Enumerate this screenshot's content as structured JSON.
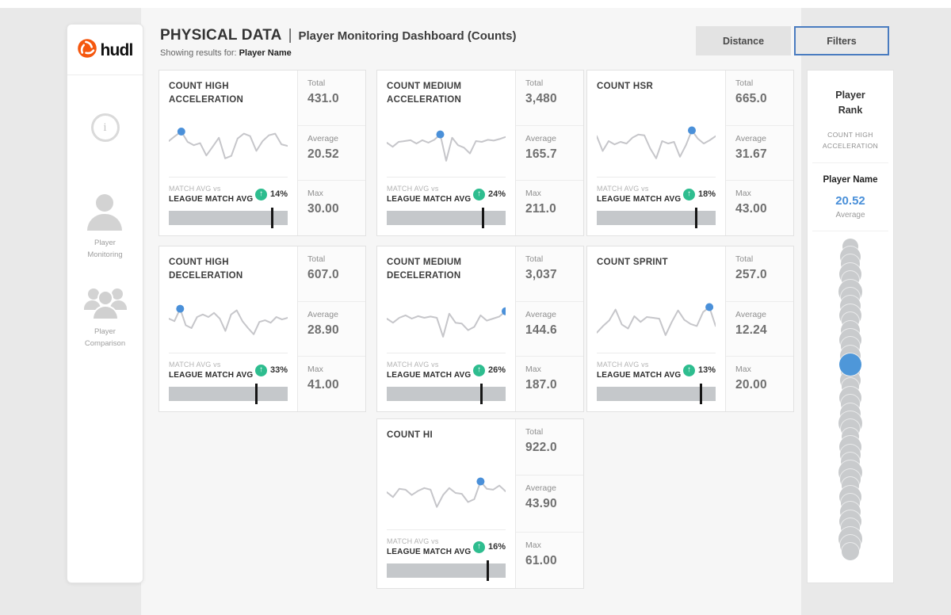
{
  "header": {
    "title": "PHYSICAL DATA",
    "separator": "|",
    "subtitle": "Player Monitoring Dashboard (Counts)",
    "results_label": "Showing results for:",
    "results_value": "Player Name",
    "distance_button": "Distance",
    "filters_button": "Filters"
  },
  "sidebar": {
    "logo": "hudl",
    "info_icon_glyph": "i",
    "items": [
      {
        "label_line1": "Player",
        "label_line2": "Monitoring"
      },
      {
        "label_line1": "Player",
        "label_line2": "Comparison"
      }
    ]
  },
  "card_labels": {
    "total": "Total",
    "average": "Average",
    "max": "Max",
    "match_avg": "MATCH AVG vs",
    "league_avg": "LEAGUE MATCH AVG",
    "up_arrow": "↑"
  },
  "cards": [
    {
      "title": "COUNT HIGH ACCELERATION",
      "total": "431.0",
      "average": "20.52",
      "max": "30.00",
      "pct": "14%",
      "tick_pct": 87,
      "dot_index": 2,
      "spark": [
        52,
        64,
        75,
        50,
        42,
        47,
        17,
        38,
        60,
        10,
        16,
        58,
        70,
        64,
        28,
        52,
        66,
        70,
        44,
        40
      ]
    },
    {
      "title": "COUNT MEDIUM ACCELERATION",
      "total": "3,480",
      "average": "165.7",
      "max": "211.0",
      "pct": "24%",
      "tick_pct": 81,
      "dot_index": 9,
      "spark": [
        48,
        38,
        50,
        52,
        54,
        46,
        54,
        48,
        55,
        68,
        4,
        60,
        42,
        36,
        22,
        52,
        50,
        55,
        53,
        57,
        62
      ]
    },
    {
      "title": "COUNT HSR",
      "total": "665.0",
      "average": "31.67",
      "max": "43.00",
      "pct": "18%",
      "tick_pct": 84,
      "dot_index": 16,
      "spark": [
        62,
        26,
        50,
        42,
        48,
        44,
        58,
        66,
        64,
        32,
        8,
        50,
        44,
        48,
        12,
        40,
        76,
        56,
        44,
        52,
        62
      ]
    },
    {
      "title": "COUNT HIGH DECELERATION",
      "total": "607.0",
      "average": "28.90",
      "max": "41.00",
      "pct": "33%",
      "tick_pct": 74,
      "dot_index": 2,
      "spark": [
        48,
        42,
        72,
        32,
        25,
        52,
        58,
        52,
        62,
        48,
        18,
        58,
        68,
        42,
        25,
        10,
        40,
        44,
        38,
        52,
        46,
        50
      ]
    },
    {
      "title": "COUNT MEDIUM DECELERATION",
      "total": "3,037",
      "average": "144.6",
      "max": "187.0",
      "pct": "26%",
      "tick_pct": 80,
      "dot_index": 19,
      "spark": [
        48,
        38,
        50,
        56,
        48,
        54,
        50,
        53,
        50,
        4,
        60,
        38,
        36,
        20,
        28,
        56,
        43,
        48,
        53,
        66
      ]
    },
    {
      "title": "COUNT SPRINT",
      "total": "257.0",
      "average": "12.24",
      "max": "20.00",
      "pct": "13%",
      "tick_pct": 88,
      "dot_index": 18,
      "spark": [
        12,
        28,
        42,
        68,
        32,
        22,
        52,
        38,
        50,
        48,
        46,
        6,
        38,
        66,
        43,
        33,
        28,
        62,
        74,
        28
      ]
    },
    {
      "title": "COUNT HI",
      "total": "922.0",
      "average": "43.90",
      "max": "61.00",
      "pct": "16%",
      "tick_pct": 85,
      "dot_index": 15,
      "spark": [
        50,
        38,
        58,
        56,
        43,
        53,
        60,
        56,
        14,
        43,
        60,
        48,
        46,
        26,
        33,
        76,
        58,
        56,
        66,
        52
      ]
    }
  ],
  "rank_panel": {
    "title_line1": "Player",
    "title_line2": "Rank",
    "metric": "COUNT HIGH ACCELERATION",
    "player_label": "Player Name",
    "value": "20.52",
    "value_label": "Average",
    "strip": {
      "highlight_index": 14,
      "sizes": [
        20,
        26,
        24,
        28,
        22,
        30,
        24,
        26,
        28,
        22,
        24,
        28,
        24,
        26,
        28,
        24,
        26,
        22,
        28,
        24,
        26,
        30,
        24,
        22,
        28,
        26,
        24,
        30,
        26,
        22,
        28,
        24,
        26,
        28,
        24,
        30,
        26,
        22
      ]
    }
  },
  "colors": {
    "accent_blue": "#4a90d9",
    "positive_green": "#2ebd8f",
    "brand_orange": "#f5570e",
    "spark_line": "#c6c6ca",
    "bar_fill": "#c5c8cb"
  }
}
